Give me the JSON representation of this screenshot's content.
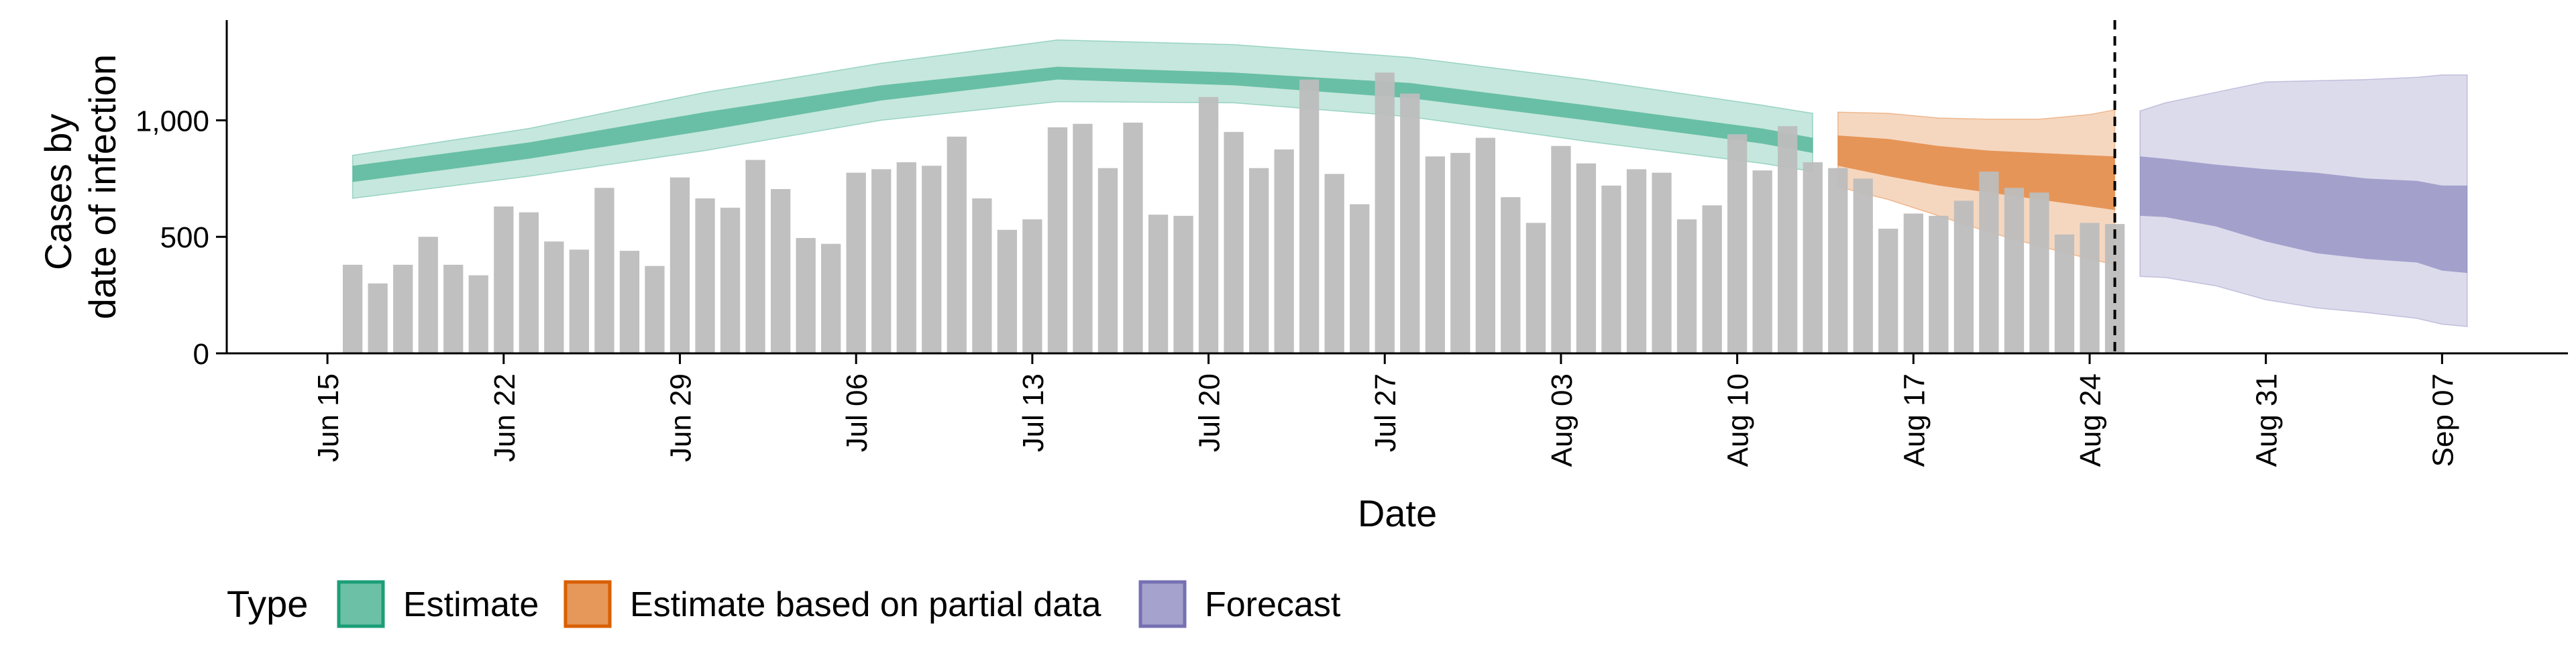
{
  "chart_data": {
    "type": "bar",
    "xlabel": "Date",
    "ylabel_lines": [
      "Cases by",
      "date of infection"
    ],
    "x_range": [
      "2020-06-11",
      "2020-09-12"
    ],
    "ylim": [
      0,
      1430
    ],
    "x_ticks": [
      {
        "date": "2020-06-15",
        "label": "Jun 15"
      },
      {
        "date": "2020-06-22",
        "label": "Jun 22"
      },
      {
        "date": "2020-06-29",
        "label": "Jun 29"
      },
      {
        "date": "2020-07-06",
        "label": "Jul 06"
      },
      {
        "date": "2020-07-13",
        "label": "Jul 13"
      },
      {
        "date": "2020-07-20",
        "label": "Jul 20"
      },
      {
        "date": "2020-07-27",
        "label": "Jul 27"
      },
      {
        "date": "2020-08-03",
        "label": "Aug 03"
      },
      {
        "date": "2020-08-10",
        "label": "Aug 10"
      },
      {
        "date": "2020-08-17",
        "label": "Aug 17"
      },
      {
        "date": "2020-08-24",
        "label": "Aug 24"
      },
      {
        "date": "2020-08-31",
        "label": "Aug 31"
      },
      {
        "date": "2020-09-07",
        "label": "Sep 07"
      }
    ],
    "y_ticks": [
      {
        "value": 0,
        "label": "0"
      },
      {
        "value": 500,
        "label": "500"
      },
      {
        "value": 1000,
        "label": "1,000"
      }
    ],
    "vline_date": "2020-08-25",
    "bars": {
      "start_date": "2020-06-16",
      "color": "#bdbdbd",
      "values": [
        380,
        300,
        380,
        500,
        380,
        335,
        630,
        605,
        480,
        445,
        710,
        440,
        375,
        755,
        665,
        625,
        830,
        705,
        495,
        470,
        775,
        790,
        820,
        805,
        930,
        665,
        530,
        575,
        970,
        985,
        795,
        990,
        595,
        590,
        1100,
        950,
        795,
        875,
        1175,
        770,
        640,
        1205,
        1115,
        845,
        860,
        925,
        670,
        560,
        890,
        815,
        720,
        790,
        775,
        575,
        635,
        940,
        785,
        975,
        820,
        795,
        750,
        535,
        600,
        590,
        655,
        780,
        710,
        690,
        510,
        560,
        555
      ]
    },
    "legend": {
      "title": "Type",
      "position": "bottom",
      "items": [
        {
          "label": "Estimate",
          "color": "#1b9e77"
        },
        {
          "label": "Estimate based on partial data",
          "color": "#d95f02"
        },
        {
          "label": "Forecast",
          "color": "#7570b3"
        }
      ]
    },
    "bands": [
      {
        "type": "Estimate",
        "color": "#1b9e77",
        "x": [
          "2020-06-16",
          "2020-06-23",
          "2020-06-30",
          "2020-07-07",
          "2020-07-14",
          "2020-07-21",
          "2020-07-28",
          "2020-08-04",
          "2020-08-11",
          "2020-08-13"
        ],
        "inner_lower": [
          735,
          835,
          955,
          1085,
          1175,
          1150,
          1095,
          1000,
          900,
          860
        ],
        "inner_upper": [
          805,
          905,
          1035,
          1150,
          1230,
          1205,
          1160,
          1065,
          965,
          925
        ],
        "outer_lower": [
          665,
          760,
          870,
          1000,
          1080,
          1075,
          1015,
          910,
          815,
          780
        ],
        "outer_upper": [
          850,
          965,
          1120,
          1245,
          1345,
          1325,
          1270,
          1175,
          1065,
          1030
        ]
      },
      {
        "type": "Estimate based on partial data",
        "color": "#d95f02",
        "x": [
          "2020-08-14",
          "2020-08-16",
          "2020-08-18",
          "2020-08-20",
          "2020-08-22",
          "2020-08-24",
          "2020-08-25"
        ],
        "inner_lower": [
          805,
          760,
          720,
          690,
          660,
          630,
          615
        ],
        "inner_upper": [
          935,
          920,
          890,
          870,
          860,
          850,
          845
        ],
        "outer_lower": [
          715,
          660,
          590,
          520,
          460,
          405,
          380
        ],
        "outer_upper": [
          1035,
          1030,
          1010,
          1005,
          1005,
          1025,
          1045
        ]
      },
      {
        "type": "Forecast",
        "color": "#7570b3",
        "x": [
          "2020-08-26",
          "2020-08-27",
          "2020-08-29",
          "2020-08-31",
          "2020-09-02",
          "2020-09-04",
          "2020-09-06",
          "2020-09-07",
          "2020-09-08"
        ],
        "inner_lower": [
          590,
          585,
          545,
          480,
          430,
          405,
          390,
          355,
          345
        ],
        "inner_upper": [
          845,
          835,
          810,
          790,
          775,
          750,
          740,
          720,
          720
        ],
        "outer_lower": [
          330,
          325,
          290,
          230,
          195,
          175,
          150,
          125,
          115
        ],
        "outer_upper": [
          1040,
          1075,
          1120,
          1165,
          1170,
          1175,
          1185,
          1195,
          1195
        ]
      }
    ]
  }
}
